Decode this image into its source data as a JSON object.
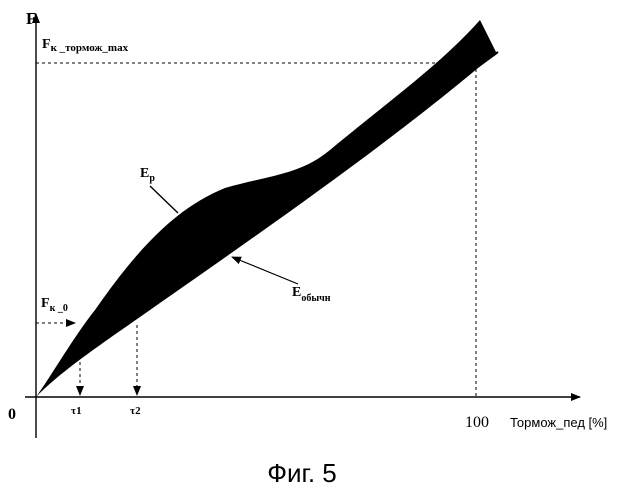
{
  "axis": {
    "y_label": "F",
    "x_unit_label": "Тормож_пед [%]",
    "origin_label": "0",
    "x_max_tick": "100"
  },
  "labels": {
    "fk_max_main": "F",
    "fk_max_sub": "к _тормож_max",
    "fk0_main": "F",
    "fk0_sub": "к _0",
    "ep_main": "E",
    "ep_sub": "p",
    "eobych_main": "E",
    "eobych_sub": "обычн",
    "t1": "τ1",
    "t2": "τ2"
  },
  "caption": "Фиг. 5",
  "colors": {
    "ink": "#000000",
    "paper": "#ffffff"
  }
}
